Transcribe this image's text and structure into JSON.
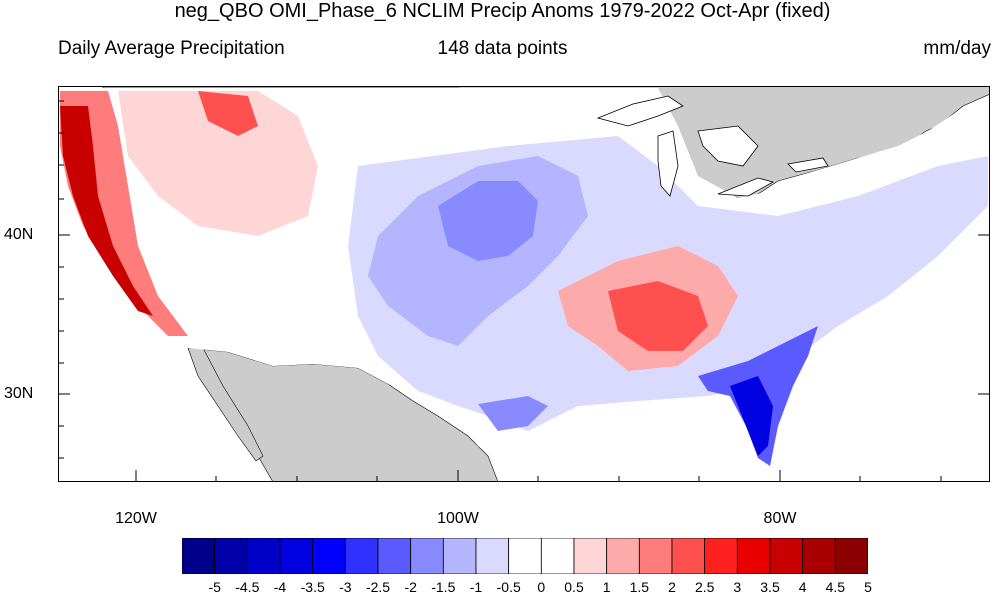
{
  "title": "neg_QBO OMI_Phase_6 NCLIM Precip Anoms 1979-2022 Oct-Apr (fixed)",
  "subtitle_left": "Daily Average Precipitation",
  "subtitle_center": "148 data points",
  "subtitle_right": "mm/day",
  "lat_labels": [
    "40N",
    "30N"
  ],
  "lon_labels": [
    "120W",
    "100W",
    "80W"
  ],
  "colorbar": {
    "labels": [
      "-5",
      "-4.5",
      "-4",
      "-3.5",
      "-3",
      "-2.5",
      "-2",
      "-1.5",
      "-1",
      "-0.5",
      "0",
      "0.5",
      "1",
      "1.5",
      "2",
      "2.5",
      "3",
      "3.5",
      "4",
      "4.5",
      "5"
    ],
    "colors": [
      "#00008b",
      "#0000a8",
      "#0000c8",
      "#0000e0",
      "#0000ff",
      "#3030ff",
      "#5a5aff",
      "#8a8aff",
      "#b4b4ff",
      "#dadaff",
      "#ffffff",
      "#ffffff",
      "#ffd6d6",
      "#ffaaaa",
      "#ff7c7c",
      "#ff5050",
      "#ff2020",
      "#e80000",
      "#c80000",
      "#a80000",
      "#8b0000"
    ]
  },
  "map": {
    "lon_range": [
      -125,
      -67
    ],
    "lat_range": [
      24.5,
      49
    ],
    "ocean_color": "#ffffff",
    "land_mask_color": "#cccccc"
  }
}
